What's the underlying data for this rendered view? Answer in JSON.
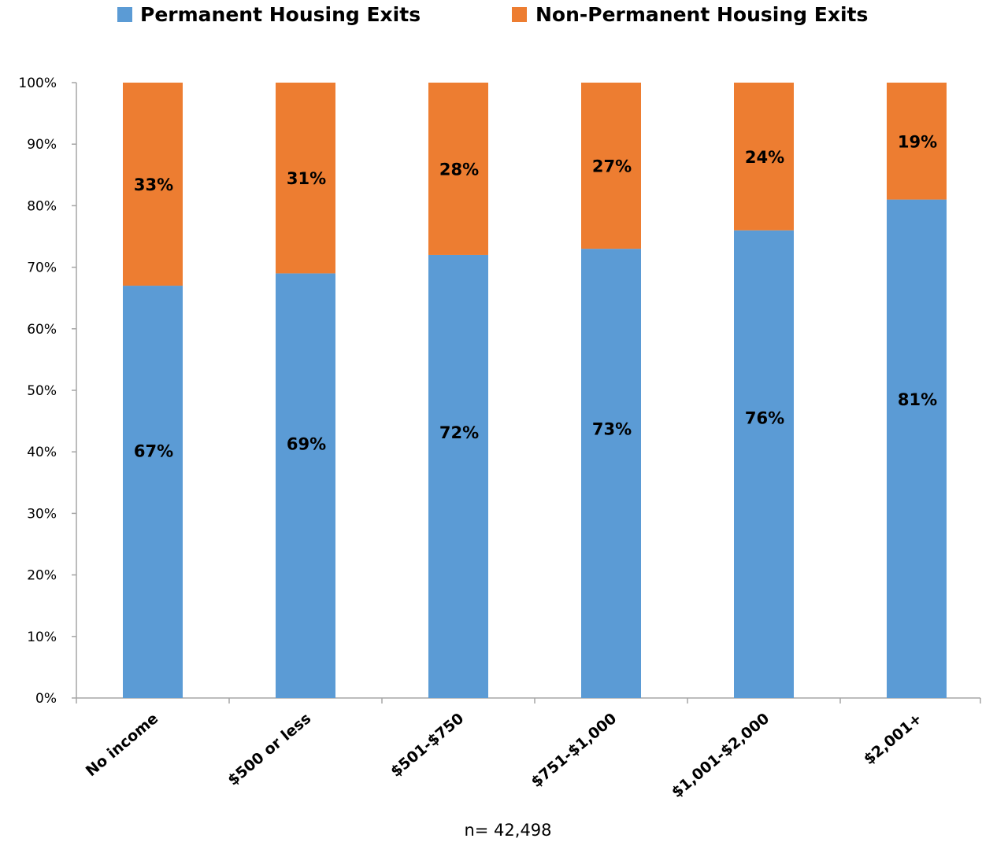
{
  "colors": {
    "permanent": "#5B9BD5",
    "non_permanent": "#ED7D31",
    "axis": "#A6A6A6"
  },
  "note": "n= 42,498",
  "chart_data": {
    "type": "bar",
    "stacked": true,
    "categories": [
      "No income",
      "$500 or less",
      "$501-$750",
      "$751-$1,000",
      "$1,001-$2,000",
      "$2,001+"
    ],
    "series": [
      {
        "name": "Permanent Housing Exits",
        "values": [
          67,
          69,
          72,
          73,
          76,
          81
        ],
        "labels": [
          "67%",
          "69%",
          "72%",
          "73%",
          "76%",
          "81%"
        ],
        "color": "#5B9BD5"
      },
      {
        "name": "Non-Permanent Housing Exits",
        "values": [
          33,
          31,
          28,
          27,
          24,
          19
        ],
        "labels": [
          "33%",
          "31%",
          "28%",
          "27%",
          "24%",
          "19%"
        ],
        "color": "#ED7D31"
      }
    ],
    "title": "",
    "xlabel": "",
    "ylabel": "",
    "ylim": [
      0,
      100
    ],
    "yticks": [
      "0%",
      "10%",
      "20%",
      "30%",
      "40%",
      "50%",
      "60%",
      "70%",
      "80%",
      "90%",
      "100%"
    ],
    "grid": false,
    "legend": "top"
  }
}
